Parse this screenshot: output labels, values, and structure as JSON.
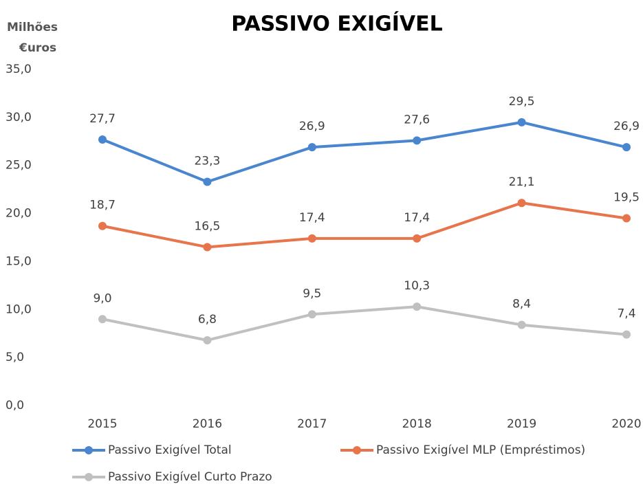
{
  "chart_data": {
    "type": "line",
    "title": "PASSIVO EXIGÍVEL",
    "ylabel": [
      "Milhões",
      "€uros"
    ],
    "categories": [
      "2015",
      "2016",
      "2017",
      "2018",
      "2019",
      "2020"
    ],
    "series": [
      {
        "name": "Passivo Exigível Total",
        "color": "#4a86cf",
        "values": [
          27.7,
          23.3,
          26.9,
          27.6,
          29.5,
          26.9
        ],
        "value_labels": [
          "27,7",
          "23,3",
          "26,9",
          "27,6",
          "29,5",
          "26,9"
        ]
      },
      {
        "name": "Passivo Exigível MLP (Empréstimos)",
        "color": "#e8744c",
        "values": [
          18.7,
          16.5,
          17.4,
          17.4,
          21.1,
          19.5
        ],
        "value_labels": [
          "18,7",
          "16,5",
          "17,4",
          "17,4",
          "21,1",
          "19,5"
        ]
      },
      {
        "name": "Passivo Exigível Curto Prazo",
        "color": "#c0c0c0",
        "values": [
          9.0,
          6.8,
          9.5,
          10.3,
          8.4,
          7.4
        ],
        "value_labels": [
          "9,0",
          "6,8",
          "9,5",
          "10,3",
          "8,4",
          "7,4"
        ]
      }
    ],
    "ylim": [
      0,
      35
    ],
    "yticks": [
      {
        "value": 0,
        "label": "0,0"
      },
      {
        "value": 5,
        "label": "5,0"
      },
      {
        "value": 10,
        "label": "10,0"
      },
      {
        "value": 15,
        "label": "15,0"
      },
      {
        "value": 20,
        "label": "20,0"
      },
      {
        "value": 25,
        "label": "25,0"
      },
      {
        "value": 30,
        "label": "30,0"
      },
      {
        "value": 35,
        "label": "35,0"
      }
    ],
    "grid": false,
    "legend": "bottom"
  }
}
